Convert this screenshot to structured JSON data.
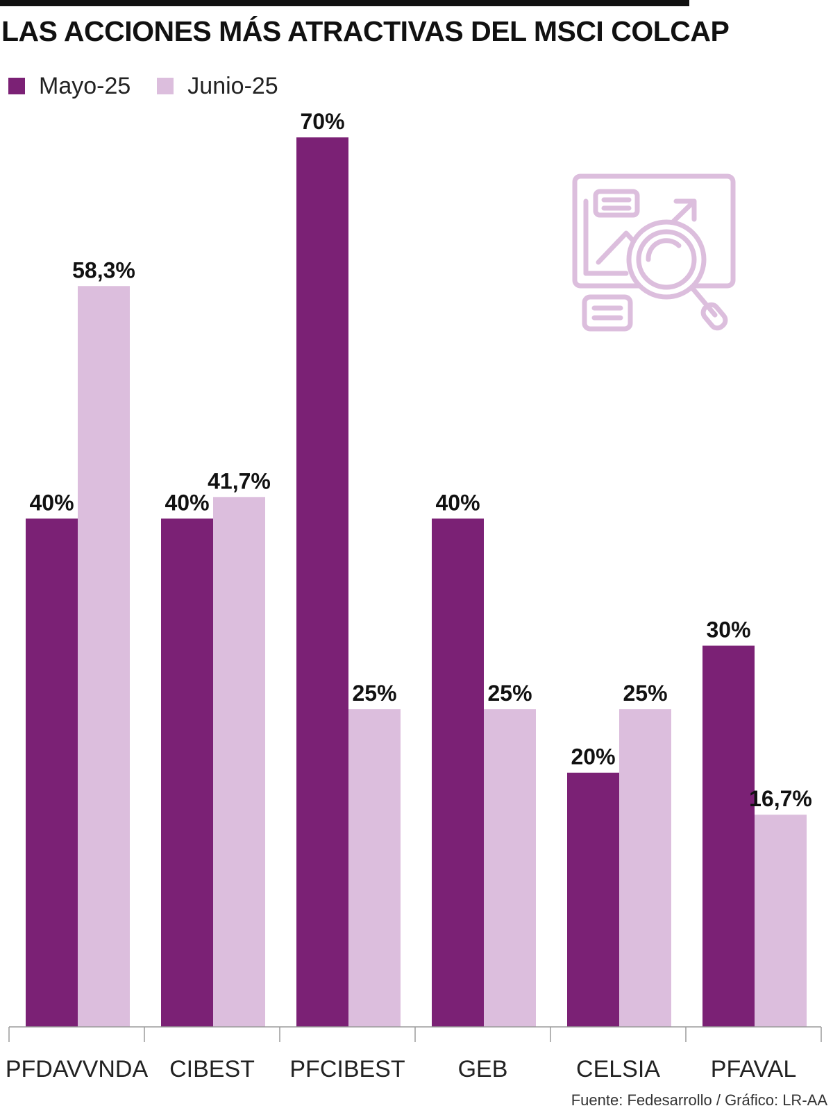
{
  "title": "LAS ACCIONES MÁS ATRACTIVAS DEL MSCI COLCAP",
  "source": "Fuente: Fedesarrollo / Gráfico: LR-AA",
  "legend": [
    {
      "label": "Mayo-25",
      "color": "#7B2175"
    },
    {
      "label": "Junio-25",
      "color": "#DCBEDD"
    }
  ],
  "decoration_icon": "analytics-magnifier-icon",
  "chart_data": {
    "type": "bar",
    "title": "LAS ACCIONES MÁS ATRACTIVAS DEL MSCI COLCAP",
    "xlabel": "",
    "ylabel": "",
    "ylim": [
      0,
      70
    ],
    "grid": false,
    "legend_position": "top-left",
    "categories": [
      "PFDAVVNDA",
      "CIBEST",
      "PFCIBEST",
      "GEB",
      "CELSIA",
      "PFAVAL"
    ],
    "series": [
      {
        "name": "Mayo-25",
        "color": "#7B2175",
        "values": [
          40,
          40,
          70,
          40,
          20,
          30
        ],
        "labels": [
          "40%",
          "40%",
          "70%",
          "40%",
          "20%",
          "30%"
        ]
      },
      {
        "name": "Junio-25",
        "color": "#DCBEDD",
        "values": [
          58.3,
          41.7,
          25,
          25,
          25,
          16.7
        ],
        "labels": [
          "58,3%",
          "41,7%",
          "25%",
          "25%",
          "25%",
          "16,7%"
        ]
      }
    ]
  }
}
